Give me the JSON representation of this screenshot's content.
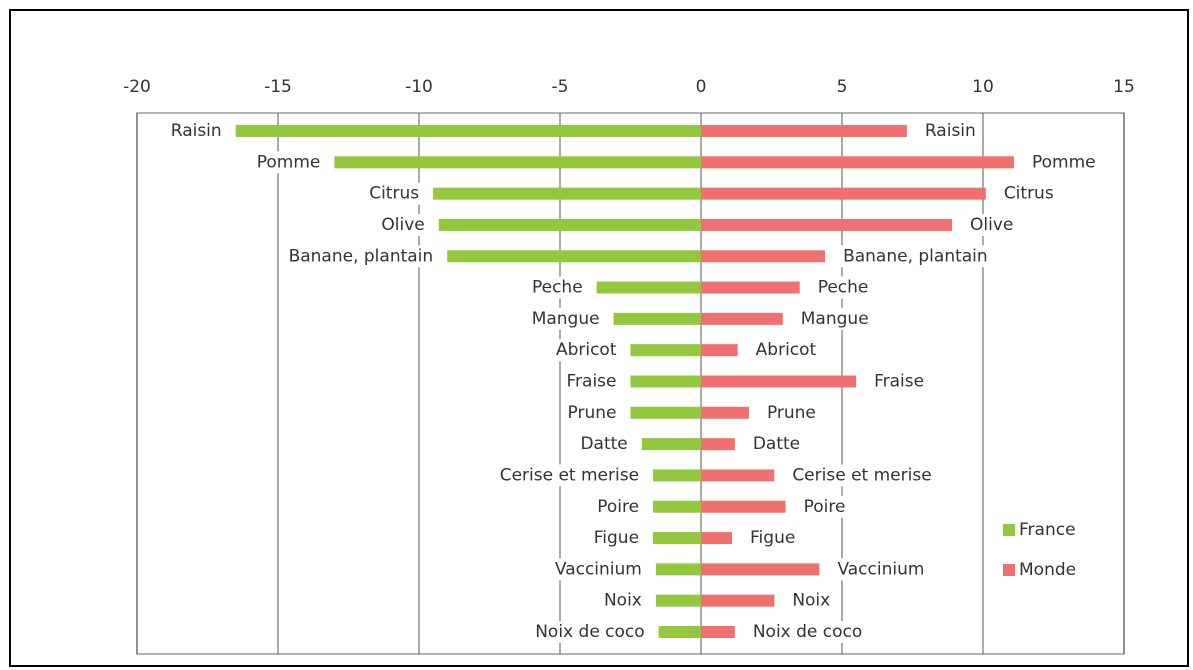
{
  "chart_data": {
    "type": "butterfly_bar",
    "categories": [
      "Raisin",
      "Pomme",
      "Citrus",
      "Olive",
      "Banane, plantain",
      "Peche",
      "Mangue",
      "Abricot",
      "Fraise",
      "Prune",
      "Datte",
      "Cerise et merise",
      "Poire",
      "Figue",
      "Vaccinium",
      "Noix",
      "Noix de coco"
    ],
    "series": [
      {
        "name": "France",
        "color": "#92c83e",
        "values": [
          -16.5,
          -13.0,
          -9.5,
          -9.3,
          -9.0,
          -3.7,
          -3.1,
          -2.5,
          -2.5,
          -2.5,
          -2.1,
          -1.7,
          -1.7,
          -1.7,
          -1.6,
          -1.6,
          -1.5
        ]
      },
      {
        "name": "Monde",
        "color": "#f07070",
        "values": [
          7.3,
          11.1,
          10.1,
          8.9,
          4.4,
          3.5,
          2.9,
          1.3,
          5.5,
          1.7,
          1.2,
          2.6,
          3.0,
          1.1,
          4.2,
          2.6,
          1.2
        ]
      }
    ],
    "xlim": [
      -20,
      15
    ],
    "xticks": [
      -20,
      -15,
      -10,
      -5,
      0,
      5,
      10,
      15
    ],
    "grid": true,
    "legend": "right"
  }
}
